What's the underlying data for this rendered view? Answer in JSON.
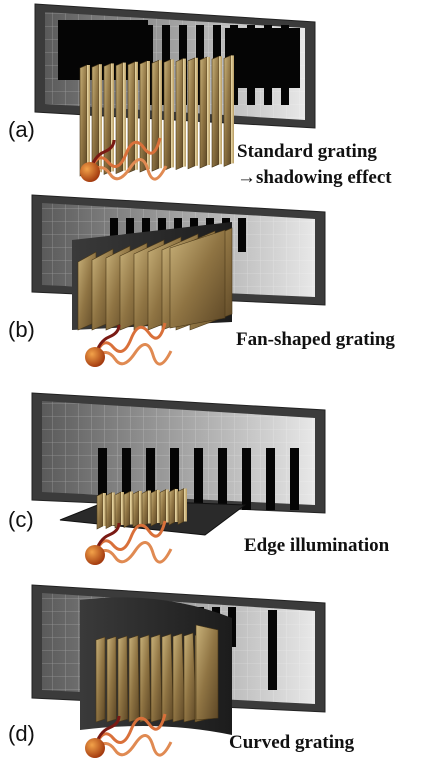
{
  "panels": [
    {
      "label": "(a)",
      "caption": [
        "Standard grating",
        "→shadowing effect"
      ]
    },
    {
      "label": "(b)",
      "caption": [
        "Fan-shaped grating"
      ]
    },
    {
      "label": "(c)",
      "caption": [
        "Edge illumination"
      ]
    },
    {
      "label": "(d)",
      "caption": [
        "Curved grating"
      ]
    }
  ]
}
